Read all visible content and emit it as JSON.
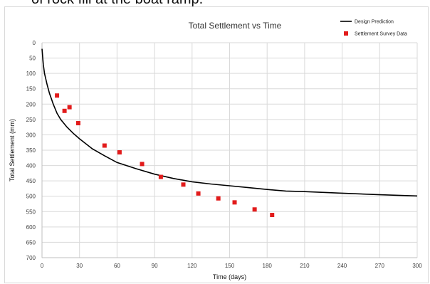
{
  "header_text": "of rock fill at the boat ramp.",
  "chart_data": {
    "type": "line",
    "title": "Total Settlement vs Time",
    "xlabel": "Time (days)",
    "ylabel": "Total Settlement (mm)",
    "xlim": [
      0,
      300
    ],
    "ylim": [
      0,
      700
    ],
    "y_inverted": true,
    "grid": true,
    "legend_placement": "top-right",
    "x_ticks": [
      "0",
      "30",
      "60",
      "90",
      "120",
      "150",
      "180",
      "210",
      "240",
      "270",
      "300"
    ],
    "y_ticks": [
      "0",
      "50",
      "100",
      "150",
      "200",
      "250",
      "300",
      "350",
      "400",
      "450",
      "500",
      "550",
      "600",
      "650",
      "700"
    ],
    "series": [
      {
        "name": "Design Prediction",
        "kind": "line",
        "color": "#000000",
        "points": [
          [
            0,
            20
          ],
          [
            1,
            70
          ],
          [
            2,
            100
          ],
          [
            4,
            135
          ],
          [
            6,
            165
          ],
          [
            9,
            200
          ],
          [
            12,
            230
          ],
          [
            15,
            250
          ],
          [
            20,
            275
          ],
          [
            25,
            295
          ],
          [
            30,
            313
          ],
          [
            40,
            345
          ],
          [
            50,
            368
          ],
          [
            60,
            390
          ],
          [
            75,
            410
          ],
          [
            90,
            428
          ],
          [
            105,
            442
          ],
          [
            120,
            453
          ],
          [
            135,
            460
          ],
          [
            150,
            466
          ],
          [
            165,
            472
          ],
          [
            180,
            478
          ],
          [
            195,
            483
          ],
          [
            210,
            485
          ],
          [
            240,
            490
          ],
          [
            270,
            495
          ],
          [
            300,
            499
          ]
        ]
      },
      {
        "name": "Settlement Survey Data",
        "kind": "scatter",
        "color": "#e21b1b",
        "points": [
          [
            12,
            172
          ],
          [
            18,
            222
          ],
          [
            22,
            210
          ],
          [
            29,
            262
          ],
          [
            50,
            335
          ],
          [
            62,
            357
          ],
          [
            80,
            395
          ],
          [
            95,
            437
          ],
          [
            113,
            462
          ],
          [
            125,
            491
          ],
          [
            141,
            507
          ],
          [
            154,
            520
          ],
          [
            170,
            543
          ],
          [
            184,
            561
          ]
        ]
      }
    ]
  }
}
